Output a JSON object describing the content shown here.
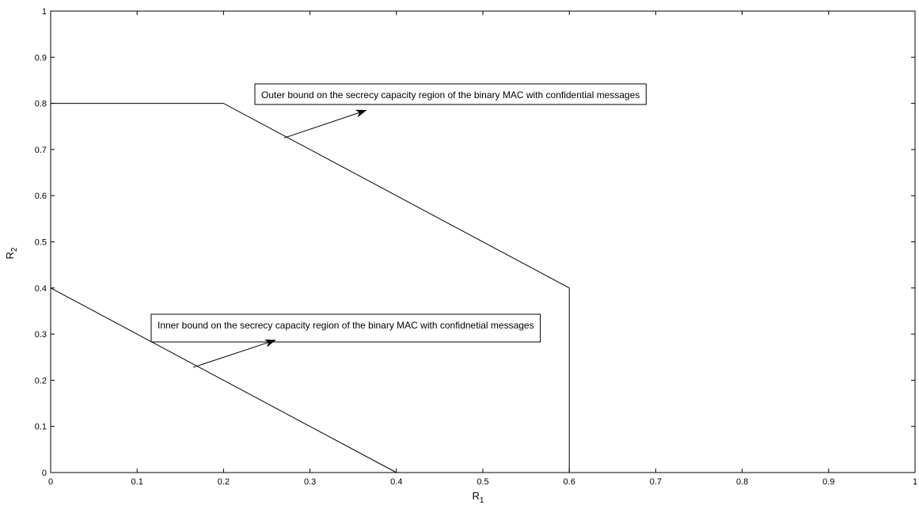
{
  "chart_data": {
    "type": "line",
    "title": "",
    "xlabel_main": "R",
    "xlabel_sub": "1",
    "ylabel_main": "R",
    "ylabel_sub": "2",
    "xlim": [
      0,
      1
    ],
    "ylim": [
      0,
      1
    ],
    "xticks": [
      0,
      0.1,
      0.2,
      0.3,
      0.4,
      0.5,
      0.6,
      0.7,
      0.8,
      0.9,
      1
    ],
    "yticks": [
      0,
      0.1,
      0.2,
      0.3,
      0.4,
      0.5,
      0.6,
      0.7,
      0.8,
      0.9,
      1
    ],
    "xtick_labels": [
      "0",
      "0.1",
      "0.2",
      "0.3",
      "0.4",
      "0.5",
      "0.6",
      "0.7",
      "0.8",
      "0.9",
      "1"
    ],
    "ytick_labels": [
      "0",
      "0.1",
      "0.2",
      "0.3",
      "0.4",
      "0.5",
      "0.6",
      "0.7",
      "0.8",
      "0.9",
      "1"
    ],
    "grid": false,
    "line_color": "#000000",
    "series": [
      {
        "x": [
          0,
          0.2,
          0.6,
          0.6
        ],
        "y": [
          0.8,
          0.8,
          0.4,
          0
        ]
      },
      {
        "x": [
          0,
          0.4
        ],
        "y": [
          0.4,
          0
        ]
      }
    ],
    "annotations": [
      {
        "text": "Outer bound on the secrecy capacity region of the binary MAC with confidential messages",
        "arrow_from": [
          0.27,
          0.725
        ],
        "arrow_to": [
          0.365,
          0.785
        ]
      },
      {
        "text": "Inner bound on the secrecy capacity region of the binary MAC with confidnetial messages",
        "arrow_from": [
          0.165,
          0.228
        ],
        "arrow_to": [
          0.26,
          0.287
        ]
      }
    ]
  }
}
